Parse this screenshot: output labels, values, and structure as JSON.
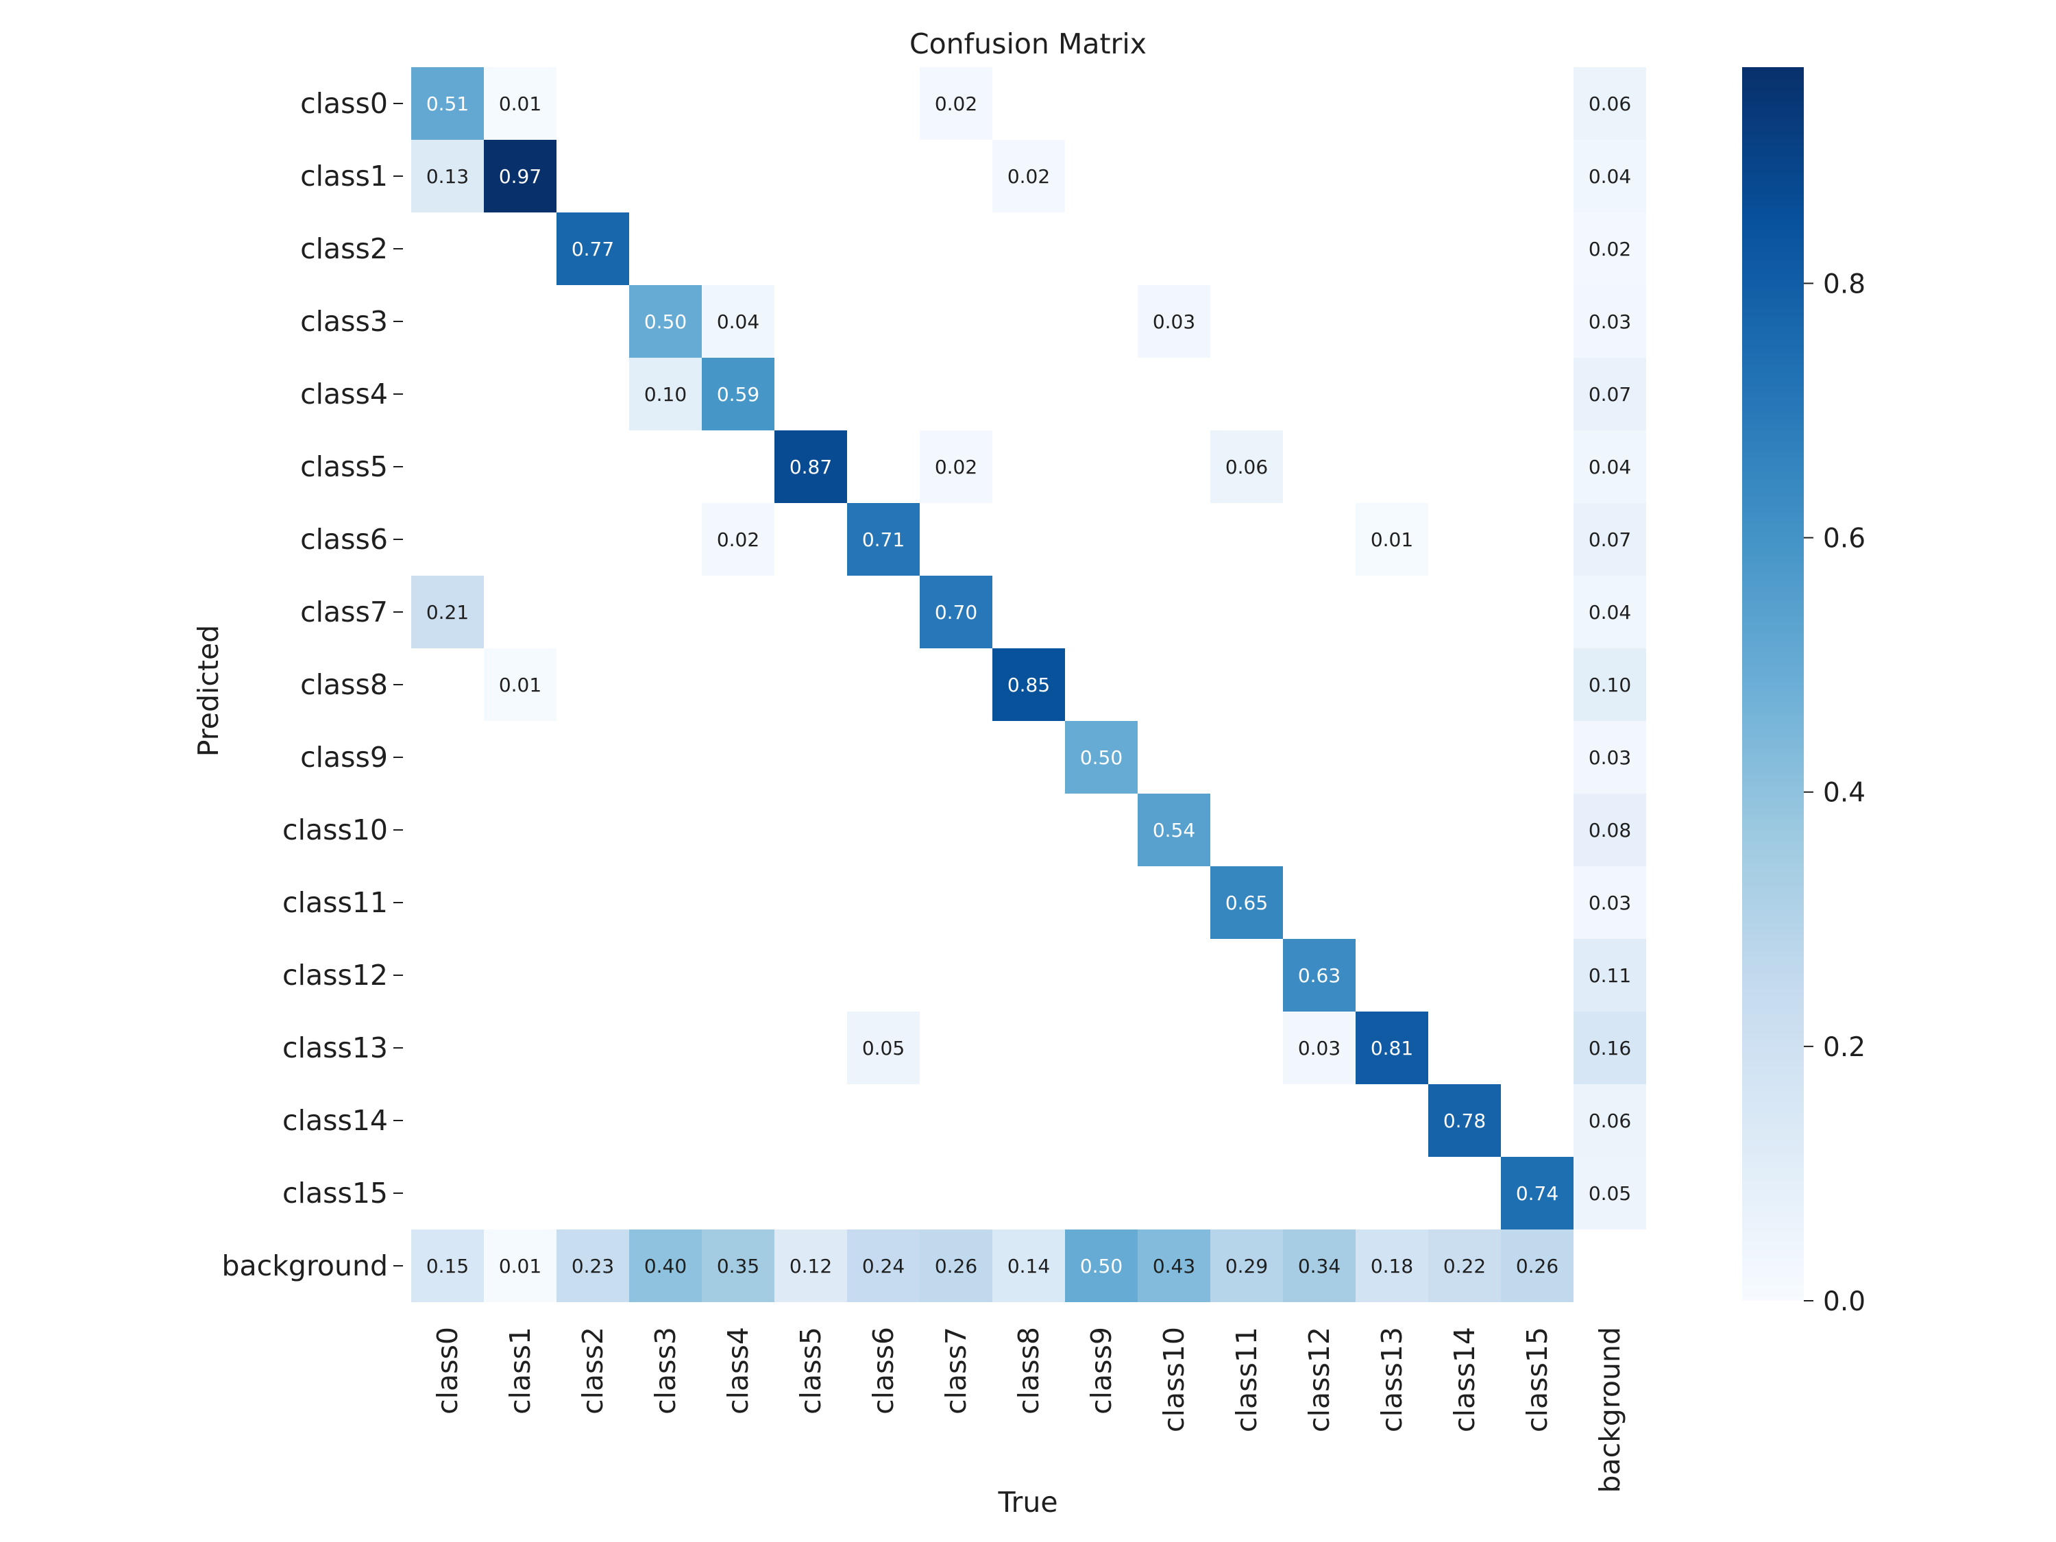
{
  "chart_data": {
    "type": "heatmap",
    "title": "Confusion Matrix",
    "xlabel": "True",
    "ylabel": "Predicted",
    "x_categories": [
      "class0",
      "class1",
      "class2",
      "class3",
      "class4",
      "class5",
      "class6",
      "class7",
      "class8",
      "class9",
      "class10",
      "class11",
      "class12",
      "class13",
      "class14",
      "class15",
      "background"
    ],
    "y_categories": [
      "class0",
      "class1",
      "class2",
      "class3",
      "class4",
      "class5",
      "class6",
      "class7",
      "class8",
      "class9",
      "class10",
      "class11",
      "class12",
      "class13",
      "class14",
      "class15",
      "background"
    ],
    "values": [
      [
        0.51,
        0.01,
        null,
        null,
        null,
        null,
        null,
        0.02,
        null,
        null,
        null,
        null,
        null,
        null,
        null,
        null,
        0.06
      ],
      [
        0.13,
        0.97,
        null,
        null,
        null,
        null,
        null,
        null,
        0.02,
        null,
        null,
        null,
        null,
        null,
        null,
        null,
        0.04
      ],
      [
        null,
        null,
        0.77,
        null,
        null,
        null,
        null,
        null,
        null,
        null,
        null,
        null,
        null,
        null,
        null,
        null,
        0.02
      ],
      [
        null,
        null,
        null,
        0.5,
        0.04,
        null,
        null,
        null,
        null,
        null,
        0.03,
        null,
        null,
        null,
        null,
        null,
        0.03
      ],
      [
        null,
        null,
        null,
        0.1,
        0.59,
        null,
        null,
        null,
        null,
        null,
        null,
        null,
        null,
        null,
        null,
        null,
        0.07
      ],
      [
        null,
        null,
        null,
        null,
        null,
        0.87,
        null,
        0.02,
        null,
        null,
        null,
        0.06,
        null,
        null,
        null,
        null,
        0.04
      ],
      [
        null,
        null,
        null,
        null,
        0.02,
        null,
        0.71,
        null,
        null,
        null,
        null,
        null,
        null,
        0.01,
        null,
        null,
        0.07
      ],
      [
        0.21,
        null,
        null,
        null,
        null,
        null,
        null,
        0.7,
        null,
        null,
        null,
        null,
        null,
        null,
        null,
        null,
        0.04
      ],
      [
        null,
        0.01,
        null,
        null,
        null,
        null,
        null,
        null,
        0.85,
        null,
        null,
        null,
        null,
        null,
        null,
        null,
        0.1
      ],
      [
        null,
        null,
        null,
        null,
        null,
        null,
        null,
        null,
        null,
        0.5,
        null,
        null,
        null,
        null,
        null,
        null,
        0.03
      ],
      [
        null,
        null,
        null,
        null,
        null,
        null,
        null,
        null,
        null,
        null,
        0.54,
        null,
        null,
        null,
        null,
        null,
        0.08
      ],
      [
        null,
        null,
        null,
        null,
        null,
        null,
        null,
        null,
        null,
        null,
        null,
        0.65,
        null,
        null,
        null,
        null,
        0.03
      ],
      [
        null,
        null,
        null,
        null,
        null,
        null,
        null,
        null,
        null,
        null,
        null,
        null,
        0.63,
        null,
        null,
        null,
        0.11
      ],
      [
        null,
        null,
        null,
        null,
        null,
        null,
        0.05,
        null,
        null,
        null,
        null,
        null,
        0.03,
        0.81,
        null,
        null,
        0.16
      ],
      [
        null,
        null,
        null,
        null,
        null,
        null,
        null,
        null,
        null,
        null,
        null,
        null,
        null,
        null,
        0.78,
        null,
        0.06
      ],
      [
        null,
        null,
        null,
        null,
        null,
        null,
        null,
        null,
        null,
        null,
        null,
        null,
        null,
        null,
        null,
        0.74,
        0.05
      ],
      [
        0.15,
        0.01,
        0.23,
        0.4,
        0.35,
        0.12,
        0.24,
        0.26,
        0.14,
        0.5,
        0.43,
        0.29,
        0.34,
        0.18,
        0.22,
        0.26,
        null
      ]
    ],
    "colorscale": "Blues",
    "vmin": 0.0,
    "vmax": 0.97,
    "colorbar_ticks": [
      "0.0",
      "0.2",
      "0.4",
      "0.6",
      "0.8"
    ],
    "legend": "right"
  }
}
